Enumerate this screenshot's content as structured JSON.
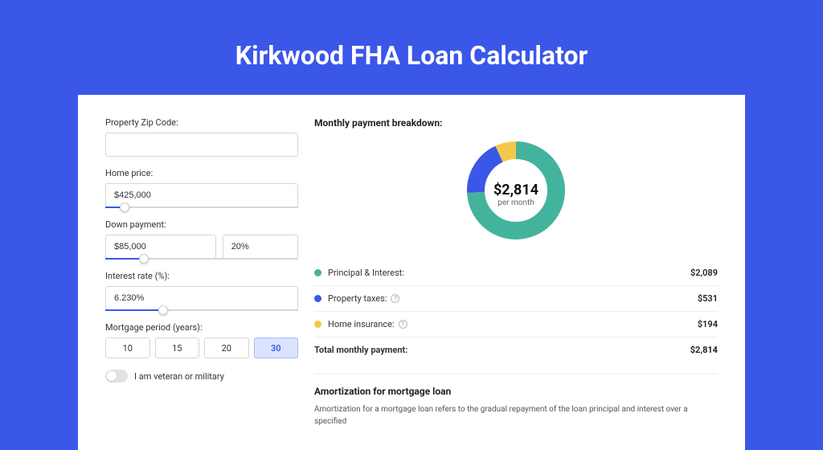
{
  "page": {
    "title": "Kirkwood FHA Loan Calculator",
    "background_color": "#3a57e8"
  },
  "form": {
    "zip_code": {
      "label": "Property Zip Code:",
      "value": ""
    },
    "home_price": {
      "label": "Home price:",
      "value": "$425,000",
      "slider_percent": 10
    },
    "down_payment": {
      "label": "Down payment:",
      "amount_value": "$85,000",
      "percent_value": "20%",
      "slider_percent": 20
    },
    "interest_rate": {
      "label": "Interest rate (%):",
      "value": "6.230%",
      "slider_percent": 30
    },
    "mortgage_period": {
      "label": "Mortgage period (years):",
      "options": [
        "10",
        "15",
        "20",
        "30"
      ],
      "selected": "30"
    },
    "veteran_toggle": {
      "label": "I am veteran or military",
      "value": false
    }
  },
  "breakdown": {
    "title": "Monthly payment breakdown:",
    "center_amount": "$2,814",
    "center_sub": "per month",
    "donut": {
      "slices": [
        {
          "key": "principal_interest",
          "value": 2089,
          "color": "#44b39d"
        },
        {
          "key": "property_taxes",
          "value": 531,
          "color": "#3a57e8"
        },
        {
          "key": "home_insurance",
          "value": 194,
          "color": "#f2c94c"
        }
      ],
      "background_color": "#ffffff",
      "stroke_width": 22,
      "radius": 50
    },
    "rows": [
      {
        "label": "Principal & Interest:",
        "value": "$2,089",
        "color": "#44b39d",
        "info": false
      },
      {
        "label": "Property taxes:",
        "value": "$531",
        "color": "#3a57e8",
        "info": true
      },
      {
        "label": "Home insurance:",
        "value": "$194",
        "color": "#f2c94c",
        "info": true
      }
    ],
    "total": {
      "label": "Total monthly payment:",
      "value": "$2,814"
    }
  },
  "amortization": {
    "title": "Amortization for mortgage loan",
    "text": "Amortization for a mortgage loan refers to the gradual repayment of the loan principal and interest over a specified"
  }
}
